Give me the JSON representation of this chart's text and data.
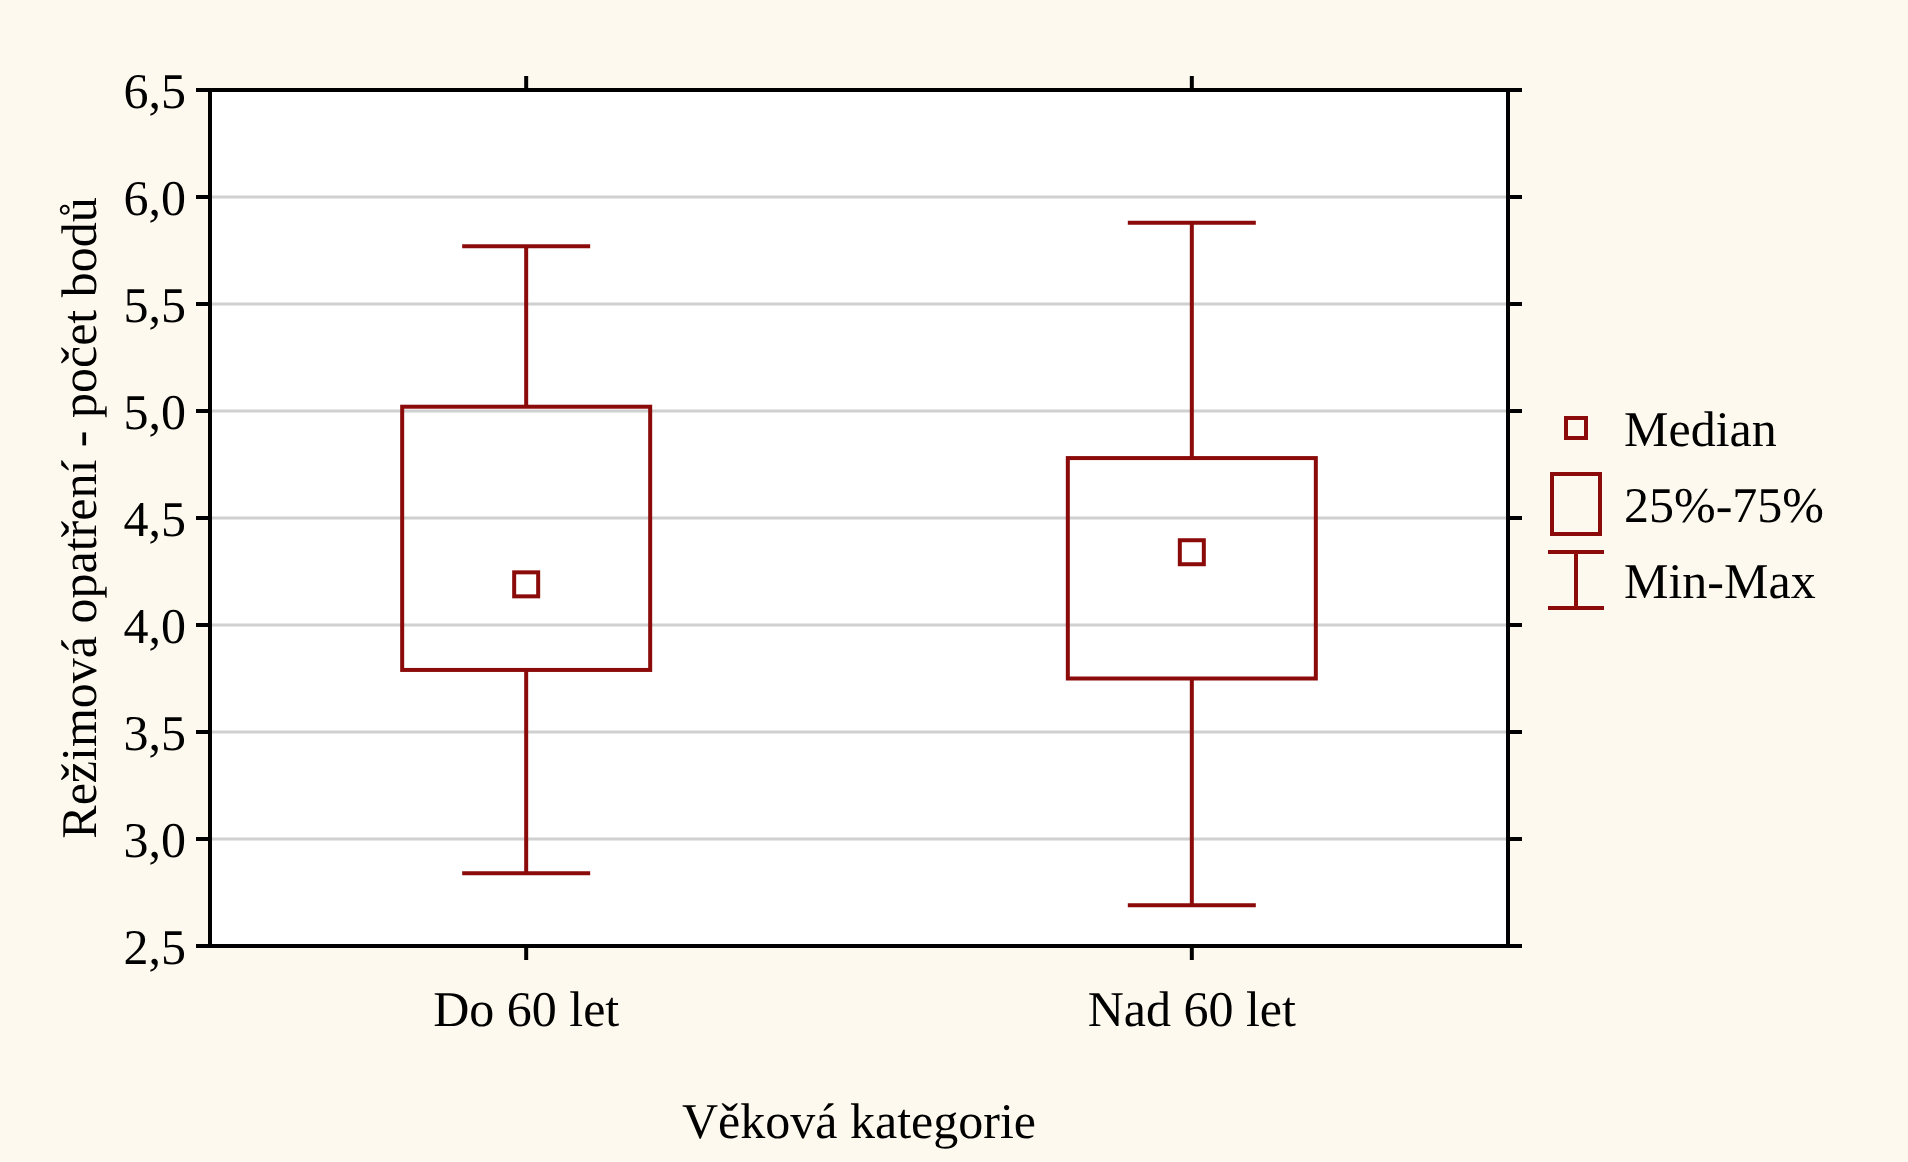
{
  "chart_data": {
    "type": "box",
    "xlabel": "Věková kategorie",
    "ylabel": "Režimová opatření - počet bodů",
    "categories": [
      "Do 60 let",
      "Nad 60 let"
    ],
    "color": "#8b0a0a",
    "boxes": [
      {
        "low": 2.84,
        "q1": 3.79,
        "median": 4.19,
        "q3": 5.02,
        "high": 5.77
      },
      {
        "low": 2.69,
        "q1": 3.75,
        "median": 4.34,
        "q3": 4.78,
        "high": 5.88
      }
    ],
    "ylim": [
      2.5,
      6.5
    ],
    "yticks": [
      {
        "value": 2.5,
        "label": "2,5"
      },
      {
        "value": 3,
        "label": "3,0"
      },
      {
        "value": 3.5,
        "label": "3,5"
      },
      {
        "value": 4,
        "label": "4,0"
      },
      {
        "value": 4.5,
        "label": "4,5"
      },
      {
        "value": 5,
        "label": "5,0"
      },
      {
        "value": 5.5,
        "label": "5,5"
      },
      {
        "value": 6,
        "label": "6,0"
      },
      {
        "value": 6.5,
        "label": "6,5"
      }
    ],
    "grid": "y",
    "annotations": [
      "Median",
      "25%-75%",
      "Min-Max"
    ]
  }
}
